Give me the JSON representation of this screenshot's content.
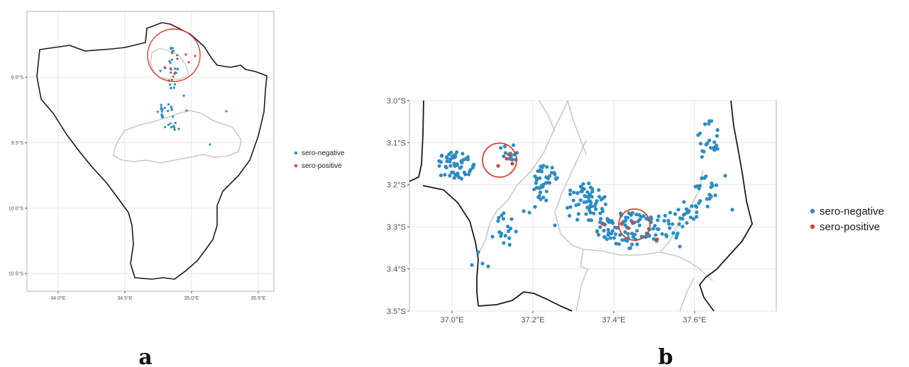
{
  "colors": {
    "sero_negative": "#2b8cc4",
    "sero_positive": "#e0402e",
    "circle": "#e0402e",
    "outline": "#1a1a1a",
    "inner_boundary": "#c9c9c9",
    "grid": "#e6e6e6"
  },
  "legend": {
    "sero_negative": "sero-negative",
    "sero_positive": "sero-positive"
  },
  "panels": {
    "a": {
      "label": "a",
      "x_ticks": [
        {
          "value": 34.0,
          "label": "34.0°E"
        },
        {
          "value": 34.5,
          "label": "34.5°E"
        },
        {
          "value": 35.0,
          "label": "35.0°E"
        },
        {
          "value": 35.5,
          "label": "35.5°E"
        }
      ],
      "y_ticks": [
        {
          "value": -9.0,
          "label": "9.0°S"
        },
        {
          "value": -9.5,
          "label": "9.5°S"
        },
        {
          "value": -10.0,
          "label": "10.0°S"
        },
        {
          "value": -10.5,
          "label": "10.5°S"
        }
      ]
    },
    "b": {
      "label": "b",
      "x_ticks": [
        {
          "value": 37.0,
          "label": "37.0°E"
        },
        {
          "value": 37.2,
          "label": "37.2°E"
        },
        {
          "value": 37.4,
          "label": "37.4°E"
        },
        {
          "value": 37.6,
          "label": "37.6°E"
        }
      ],
      "y_ticks": [
        {
          "value": -3.0,
          "label": "3.0°S"
        },
        {
          "value": -3.1,
          "label": "3.1°S"
        },
        {
          "value": -3.2,
          "label": "3.2°S"
        },
        {
          "value": -3.3,
          "label": "3.3°S"
        },
        {
          "value": -3.4,
          "label": "3.4°S"
        },
        {
          "value": -3.5,
          "label": "3.5°S"
        }
      ]
    }
  }
}
